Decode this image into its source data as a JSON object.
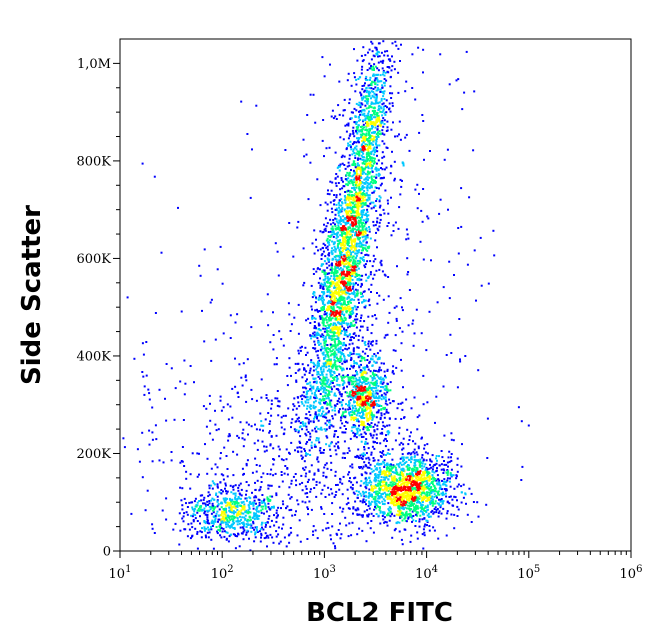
{
  "chart_data": {
    "type": "scatter",
    "subtype": "flow-cytometry density dot plot (pseudocolor)",
    "xlabel": "BCL2  FITC",
    "ylabel": "Side Scatter",
    "x_scale": "log",
    "xlim": [
      10,
      1000000
    ],
    "ylim": [
      0,
      1050000
    ],
    "x_tick_labels": [
      {
        "base": "10",
        "exp": "1"
      },
      {
        "base": "10",
        "exp": "2"
      },
      {
        "base": "10",
        "exp": "3"
      },
      {
        "base": "10",
        "exp": "4"
      },
      {
        "base": "10",
        "exp": "5"
      },
      {
        "base": "10",
        "exp": "6"
      }
    ],
    "x_tick_values": [
      10,
      100,
      1000,
      10000,
      100000,
      1000000
    ],
    "y_tick_labels": [
      "0",
      "200K",
      "400K",
      "600K",
      "800K",
      "1,0M"
    ],
    "y_tick_values": [
      0,
      200000,
      400000,
      600000,
      800000,
      1000000
    ],
    "grid": false,
    "density_colors": [
      "#0000ff",
      "#00c8ff",
      "#00ff80",
      "#ffff00",
      "#ff0000"
    ],
    "populations": [
      {
        "x_center": 1600,
        "y_center": 630000,
        "density": "high",
        "extent": "diagonal band ~1000-3500 from 350K to 1.05M"
      },
      {
        "x_center": 2500,
        "y_center": 320000,
        "density": "medium"
      },
      {
        "x_center": 6500,
        "y_center": 110000,
        "density": "high"
      },
      {
        "x_center": 120,
        "y_center": 60000,
        "density": "medium"
      }
    ]
  }
}
